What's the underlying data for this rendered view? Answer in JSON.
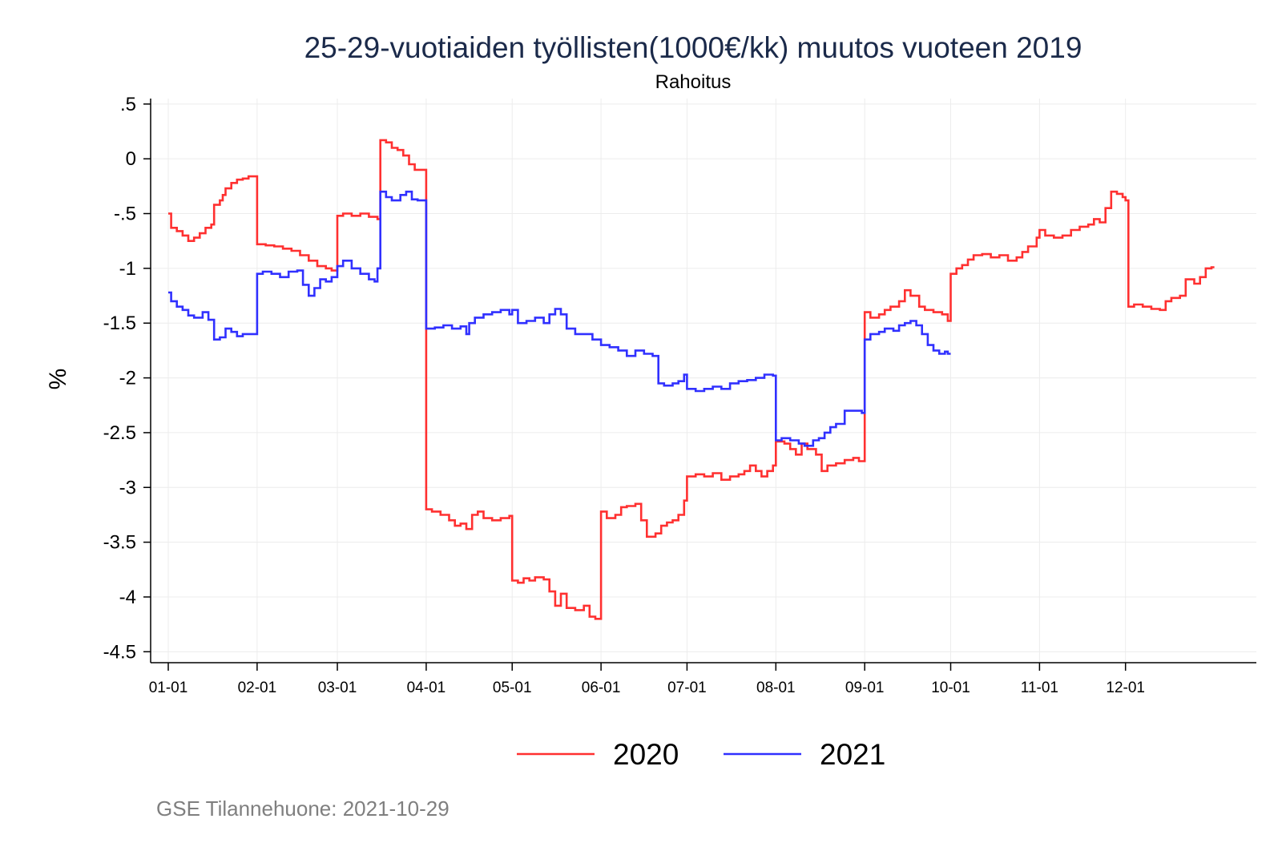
{
  "chart_data": {
    "type": "line",
    "title": "25-29-vuotiaiden työllisten(1000€/kk) muutos vuoteen 2019",
    "subtitle": "Rahoitus",
    "xlabel": "",
    "ylabel": "%",
    "x_ticks": [
      "01-01",
      "02-01",
      "03-01",
      "04-01",
      "05-01",
      "06-01",
      "07-01",
      "08-01",
      "09-01",
      "10-01",
      "11-01",
      "12-01"
    ],
    "y_ticks": [
      ".5",
      "0",
      "-.5",
      "-1",
      "-1.5",
      "-2",
      "-2.5",
      "-3",
      "-3.5",
      "-4",
      "-4.5"
    ],
    "ylim": [
      -4.6,
      0.55
    ],
    "grid": true,
    "legend_position": "bottom",
    "step": true,
    "note": "GSE Tilannehuone: 2021-10-29",
    "series": [
      {
        "name": "2020",
        "color": "#ff3030",
        "points": [
          [
            "01-01",
            -0.5
          ],
          [
            "01-02",
            -0.63
          ],
          [
            "01-04",
            -0.66
          ],
          [
            "01-06",
            -0.7
          ],
          [
            "01-08",
            -0.75
          ],
          [
            "01-10",
            -0.72
          ],
          [
            "01-12",
            -0.68
          ],
          [
            "01-14",
            -0.63
          ],
          [
            "01-16",
            -0.6
          ],
          [
            "01-17",
            -0.42
          ],
          [
            "01-19",
            -0.38
          ],
          [
            "01-20",
            -0.33
          ],
          [
            "01-21",
            -0.27
          ],
          [
            "01-23",
            -0.22
          ],
          [
            "01-25",
            -0.19
          ],
          [
            "01-27",
            -0.18
          ],
          [
            "01-29",
            -0.16
          ],
          [
            "02-01",
            -0.78
          ],
          [
            "02-04",
            -0.79
          ],
          [
            "02-07",
            -0.8
          ],
          [
            "02-10",
            -0.82
          ],
          [
            "02-13",
            -0.84
          ],
          [
            "02-16",
            -0.88
          ],
          [
            "02-19",
            -0.93
          ],
          [
            "02-22",
            -0.98
          ],
          [
            "02-25",
            -1.0
          ],
          [
            "02-27",
            -1.02
          ],
          [
            "03-01",
            -0.52
          ],
          [
            "03-03",
            -0.5
          ],
          [
            "03-06",
            -0.52
          ],
          [
            "03-09",
            -0.5
          ],
          [
            "03-12",
            -0.53
          ],
          [
            "03-15",
            -0.55
          ],
          [
            "03-16",
            0.17
          ],
          [
            "03-18",
            0.15
          ],
          [
            "03-20",
            0.1
          ],
          [
            "03-22",
            0.08
          ],
          [
            "03-24",
            0.03
          ],
          [
            "03-26",
            -0.05
          ],
          [
            "03-28",
            -0.1
          ],
          [
            "04-01",
            -3.2
          ],
          [
            "04-03",
            -3.22
          ],
          [
            "04-06",
            -3.25
          ],
          [
            "04-09",
            -3.3
          ],
          [
            "04-11",
            -3.35
          ],
          [
            "04-13",
            -3.33
          ],
          [
            "04-15",
            -3.38
          ],
          [
            "04-17",
            -3.25
          ],
          [
            "04-19",
            -3.22
          ],
          [
            "04-21",
            -3.28
          ],
          [
            "04-24",
            -3.3
          ],
          [
            "04-27",
            -3.28
          ],
          [
            "04-30",
            -3.26
          ],
          [
            "05-01",
            -3.85
          ],
          [
            "05-03",
            -3.87
          ],
          [
            "05-05",
            -3.83
          ],
          [
            "05-07",
            -3.85
          ],
          [
            "05-09",
            -3.82
          ],
          [
            "05-12",
            -3.84
          ],
          [
            "05-14",
            -3.95
          ],
          [
            "05-16",
            -4.08
          ],
          [
            "05-18",
            -3.97
          ],
          [
            "05-20",
            -4.1
          ],
          [
            "05-23",
            -4.12
          ],
          [
            "05-26",
            -4.08
          ],
          [
            "05-28",
            -4.18
          ],
          [
            "05-30",
            -4.2
          ],
          [
            "06-01",
            -3.22
          ],
          [
            "06-03",
            -3.28
          ],
          [
            "06-06",
            -3.25
          ],
          [
            "06-08",
            -3.18
          ],
          [
            "06-10",
            -3.17
          ],
          [
            "06-13",
            -3.15
          ],
          [
            "06-15",
            -3.3
          ],
          [
            "06-17",
            -3.45
          ],
          [
            "06-20",
            -3.42
          ],
          [
            "06-22",
            -3.35
          ],
          [
            "06-24",
            -3.32
          ],
          [
            "06-26",
            -3.3
          ],
          [
            "06-28",
            -3.25
          ],
          [
            "06-30",
            -3.12
          ],
          [
            "07-01",
            -2.9
          ],
          [
            "07-04",
            -2.88
          ],
          [
            "07-07",
            -2.9
          ],
          [
            "07-10",
            -2.87
          ],
          [
            "07-13",
            -2.93
          ],
          [
            "07-16",
            -2.9
          ],
          [
            "07-19",
            -2.88
          ],
          [
            "07-21",
            -2.85
          ],
          [
            "07-23",
            -2.8
          ],
          [
            "07-25",
            -2.85
          ],
          [
            "07-27",
            -2.9
          ],
          [
            "07-29",
            -2.85
          ],
          [
            "07-31",
            -2.8
          ],
          [
            "08-01",
            -2.58
          ],
          [
            "08-04",
            -2.6
          ],
          [
            "08-06",
            -2.65
          ],
          [
            "08-08",
            -2.7
          ],
          [
            "08-10",
            -2.6
          ],
          [
            "08-12",
            -2.65
          ],
          [
            "08-15",
            -2.7
          ],
          [
            "08-17",
            -2.85
          ],
          [
            "08-19",
            -2.8
          ],
          [
            "08-22",
            -2.78
          ],
          [
            "08-25",
            -2.75
          ],
          [
            "08-28",
            -2.73
          ],
          [
            "08-30",
            -2.76
          ],
          [
            "09-01",
            -1.4
          ],
          [
            "09-03",
            -1.45
          ],
          [
            "09-06",
            -1.42
          ],
          [
            "09-08",
            -1.38
          ],
          [
            "09-10",
            -1.35
          ],
          [
            "09-13",
            -1.3
          ],
          [
            "09-15",
            -1.2
          ],
          [
            "09-17",
            -1.25
          ],
          [
            "09-20",
            -1.35
          ],
          [
            "09-22",
            -1.38
          ],
          [
            "09-25",
            -1.4
          ],
          [
            "09-28",
            -1.42
          ],
          [
            "09-30",
            -1.48
          ],
          [
            "10-01",
            -1.05
          ],
          [
            "10-03",
            -1.0
          ],
          [
            "10-05",
            -0.97
          ],
          [
            "10-07",
            -0.92
          ],
          [
            "10-09",
            -0.88
          ],
          [
            "10-12",
            -0.87
          ],
          [
            "10-15",
            -0.9
          ],
          [
            "10-18",
            -0.88
          ],
          [
            "10-21",
            -0.93
          ],
          [
            "10-24",
            -0.9
          ],
          [
            "10-26",
            -0.85
          ],
          [
            "10-28",
            -0.8
          ],
          [
            "10-31",
            -0.72
          ],
          [
            "11-01",
            -0.65
          ],
          [
            "11-03",
            -0.7
          ],
          [
            "11-06",
            -0.72
          ],
          [
            "11-09",
            -0.7
          ],
          [
            "11-12",
            -0.65
          ],
          [
            "11-15",
            -0.62
          ],
          [
            "11-18",
            -0.6
          ],
          [
            "11-20",
            -0.55
          ],
          [
            "11-22",
            -0.58
          ],
          [
            "11-24",
            -0.45
          ],
          [
            "11-26",
            -0.3
          ],
          [
            "11-28",
            -0.32
          ],
          [
            "11-30",
            -0.35
          ],
          [
            "12-01",
            -0.38
          ],
          [
            "12-02",
            -1.35
          ],
          [
            "12-04",
            -1.33
          ],
          [
            "12-07",
            -1.35
          ],
          [
            "12-10",
            -1.37
          ],
          [
            "12-13",
            -1.38
          ],
          [
            "12-15",
            -1.3
          ],
          [
            "12-17",
            -1.27
          ],
          [
            "12-20",
            -1.25
          ],
          [
            "12-22",
            -1.1
          ],
          [
            "12-25",
            -1.14
          ],
          [
            "12-27",
            -1.08
          ],
          [
            "12-29",
            -1.0
          ],
          [
            "12-31",
            -0.99
          ]
        ]
      },
      {
        "name": "2021",
        "color": "#3030ff",
        "points": [
          [
            "01-01",
            -1.22
          ],
          [
            "01-02",
            -1.3
          ],
          [
            "01-04",
            -1.35
          ],
          [
            "01-06",
            -1.38
          ],
          [
            "01-08",
            -1.43
          ],
          [
            "01-10",
            -1.45
          ],
          [
            "01-13",
            -1.4
          ],
          [
            "01-15",
            -1.47
          ],
          [
            "01-17",
            -1.65
          ],
          [
            "01-19",
            -1.63
          ],
          [
            "01-21",
            -1.55
          ],
          [
            "01-23",
            -1.58
          ],
          [
            "01-25",
            -1.62
          ],
          [
            "01-27",
            -1.6
          ],
          [
            "01-29",
            -1.6
          ],
          [
            "02-01",
            -1.05
          ],
          [
            "02-03",
            -1.03
          ],
          [
            "02-06",
            -1.05
          ],
          [
            "02-09",
            -1.08
          ],
          [
            "02-12",
            -1.03
          ],
          [
            "02-15",
            -1.02
          ],
          [
            "02-17",
            -1.15
          ],
          [
            "02-19",
            -1.25
          ],
          [
            "02-21",
            -1.18
          ],
          [
            "02-23",
            -1.1
          ],
          [
            "02-25",
            -1.12
          ],
          [
            "02-27",
            -1.08
          ],
          [
            "03-01",
            -0.98
          ],
          [
            "03-03",
            -0.93
          ],
          [
            "03-06",
            -1.0
          ],
          [
            "03-09",
            -1.05
          ],
          [
            "03-12",
            -1.1
          ],
          [
            "03-14",
            -1.12
          ],
          [
            "03-15",
            -1.0
          ],
          [
            "03-16",
            -0.3
          ],
          [
            "03-18",
            -0.35
          ],
          [
            "03-20",
            -0.38
          ],
          [
            "03-23",
            -0.33
          ],
          [
            "03-25",
            -0.3
          ],
          [
            "03-27",
            -0.37
          ],
          [
            "03-29",
            -0.38
          ],
          [
            "04-01",
            -1.55
          ],
          [
            "04-04",
            -1.54
          ],
          [
            "04-07",
            -1.52
          ],
          [
            "04-10",
            -1.55
          ],
          [
            "04-13",
            -1.53
          ],
          [
            "04-15",
            -1.6
          ],
          [
            "04-16",
            -1.5
          ],
          [
            "04-18",
            -1.45
          ],
          [
            "04-21",
            -1.42
          ],
          [
            "04-24",
            -1.4
          ],
          [
            "04-27",
            -1.38
          ],
          [
            "04-30",
            -1.42
          ],
          [
            "05-01",
            -1.38
          ],
          [
            "05-03",
            -1.5
          ],
          [
            "05-06",
            -1.48
          ],
          [
            "05-09",
            -1.45
          ],
          [
            "05-12",
            -1.5
          ],
          [
            "05-14",
            -1.42
          ],
          [
            "05-16",
            -1.37
          ],
          [
            "05-18",
            -1.42
          ],
          [
            "05-20",
            -1.55
          ],
          [
            "05-23",
            -1.6
          ],
          [
            "05-26",
            -1.6
          ],
          [
            "05-29",
            -1.65
          ],
          [
            "06-01",
            -1.7
          ],
          [
            "06-04",
            -1.72
          ],
          [
            "06-07",
            -1.75
          ],
          [
            "06-10",
            -1.8
          ],
          [
            "06-13",
            -1.75
          ],
          [
            "06-16",
            -1.78
          ],
          [
            "06-19",
            -1.8
          ],
          [
            "06-21",
            -2.05
          ],
          [
            "06-23",
            -2.07
          ],
          [
            "06-26",
            -2.05
          ],
          [
            "06-28",
            -2.03
          ],
          [
            "06-30",
            -1.97
          ],
          [
            "07-01",
            -2.1
          ],
          [
            "07-04",
            -2.12
          ],
          [
            "07-07",
            -2.1
          ],
          [
            "07-10",
            -2.08
          ],
          [
            "07-13",
            -2.1
          ],
          [
            "07-16",
            -2.05
          ],
          [
            "07-19",
            -2.03
          ],
          [
            "07-22",
            -2.02
          ],
          [
            "07-25",
            -2.0
          ],
          [
            "07-28",
            -1.97
          ],
          [
            "07-31",
            -1.98
          ],
          [
            "08-01",
            -2.57
          ],
          [
            "08-03",
            -2.55
          ],
          [
            "08-06",
            -2.57
          ],
          [
            "08-09",
            -2.6
          ],
          [
            "08-11",
            -2.62
          ],
          [
            "08-14",
            -2.57
          ],
          [
            "08-16",
            -2.55
          ],
          [
            "08-18",
            -2.5
          ],
          [
            "08-20",
            -2.45
          ],
          [
            "08-22",
            -2.42
          ],
          [
            "08-25",
            -2.3
          ],
          [
            "08-28",
            -2.3
          ],
          [
            "08-31",
            -2.32
          ],
          [
            "09-01",
            -1.65
          ],
          [
            "09-03",
            -1.6
          ],
          [
            "09-06",
            -1.58
          ],
          [
            "09-08",
            -1.55
          ],
          [
            "09-11",
            -1.57
          ],
          [
            "09-13",
            -1.52
          ],
          [
            "09-15",
            -1.5
          ],
          [
            "09-17",
            -1.48
          ],
          [
            "09-19",
            -1.52
          ],
          [
            "09-21",
            -1.6
          ],
          [
            "09-23",
            -1.7
          ],
          [
            "09-25",
            -1.75
          ],
          [
            "09-27",
            -1.78
          ],
          [
            "09-29",
            -1.76
          ],
          [
            "09-30",
            -1.78
          ]
        ]
      }
    ]
  }
}
